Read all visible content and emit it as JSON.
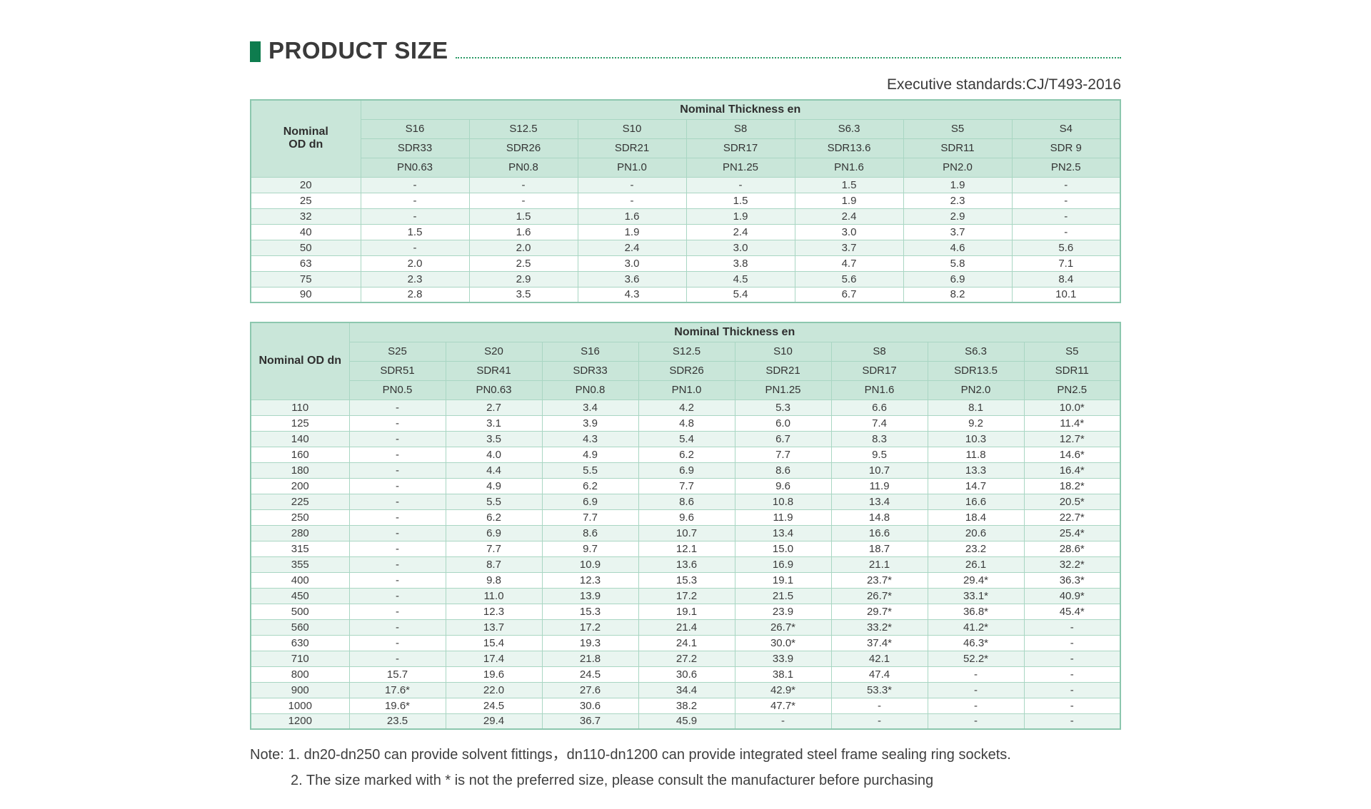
{
  "page": {
    "title": "PRODUCT SIZE",
    "standard": "Executive standards:CJ/T493-2016",
    "notes": [
      "Note: 1. dn20-dn250 can provide solvent fittings，dn110-dn1200 can provide integrated steel frame sealing ring sockets.",
      "2. The size marked with * is not the preferred size, please consult the manufacturer before purchasing"
    ],
    "colors": {
      "accent": "#0e7c4e",
      "dotted_leader": "#2c9a67",
      "table_header_bg": "#c9e6d9",
      "row_stripe_bg": "#e9f5f0",
      "table_border": "#a9d6c3",
      "table_outer_border": "#8cc7ae",
      "text": "#3c3c3c"
    }
  },
  "tables": [
    {
      "corner_lines": [
        "Nominal",
        "OD dn"
      ],
      "span_header": "Nominal Thickness en",
      "corner_width": 154,
      "s_row": [
        "S16",
        "S12.5",
        "S10",
        "S8",
        "S6.3",
        "S5",
        "S4"
      ],
      "sdr_row": [
        "SDR33",
        "SDR26",
        "SDR21",
        "SDR17",
        "SDR13.6",
        "SDR11",
        "SDR 9"
      ],
      "pn_row": [
        "PN0.63",
        "PN0.8",
        "PN1.0",
        "PN1.25",
        "PN1.6",
        "PN2.0",
        "PN2.5"
      ],
      "rows": [
        {
          "dn": "20",
          "values": [
            "-",
            "-",
            "-",
            "-",
            "1.5",
            "1.9",
            "-"
          ]
        },
        {
          "dn": "25",
          "values": [
            "-",
            "-",
            "-",
            "1.5",
            "1.9",
            "2.3",
            "-"
          ]
        },
        {
          "dn": "32",
          "values": [
            "-",
            "1.5",
            "1.6",
            "1.9",
            "2.4",
            "2.9",
            "-"
          ]
        },
        {
          "dn": "40",
          "values": [
            "1.5",
            "1.6",
            "1.9",
            "2.4",
            "3.0",
            "3.7",
            "-"
          ]
        },
        {
          "dn": "50",
          "values": [
            "-",
            "2.0",
            "2.4",
            "3.0",
            "3.7",
            "4.6",
            "5.6"
          ]
        },
        {
          "dn": "63",
          "values": [
            "2.0",
            "2.5",
            "3.0",
            "3.8",
            "4.7",
            "5.8",
            "7.1"
          ]
        },
        {
          "dn": "75",
          "values": [
            "2.3",
            "2.9",
            "3.6",
            "4.5",
            "5.6",
            "6.9",
            "8.4"
          ]
        },
        {
          "dn": "90",
          "values": [
            "2.8",
            "3.5",
            "4.3",
            "5.4",
            "6.7",
            "8.2",
            "10.1"
          ]
        }
      ]
    },
    {
      "corner_lines": [
        "Nominal OD dn"
      ],
      "span_header": "Nominal Thickness en",
      "corner_width": 138,
      "s_row": [
        "S25",
        "S20",
        "S16",
        "S12.5",
        "S10",
        "S8",
        "S6.3",
        "S5"
      ],
      "sdr_row": [
        "SDR51",
        "SDR41",
        "SDR33",
        "SDR26",
        "SDR21",
        "SDR17",
        "SDR13.5",
        "SDR11"
      ],
      "pn_row": [
        "PN0.5",
        "PN0.63",
        "PN0.8",
        "PN1.0",
        "PN1.25",
        "PN1.6",
        "PN2.0",
        "PN2.5"
      ],
      "rows": [
        {
          "dn": "110",
          "values": [
            "-",
            "2.7",
            "3.4",
            "4.2",
            "5.3",
            "6.6",
            "8.1",
            "10.0*"
          ]
        },
        {
          "dn": "125",
          "values": [
            "-",
            "3.1",
            "3.9",
            "4.8",
            "6.0",
            "7.4",
            "9.2",
            "11.4*"
          ]
        },
        {
          "dn": "140",
          "values": [
            "-",
            "3.5",
            "4.3",
            "5.4",
            "6.7",
            "8.3",
            "10.3",
            "12.7*"
          ]
        },
        {
          "dn": "160",
          "values": [
            "-",
            "4.0",
            "4.9",
            "6.2",
            "7.7",
            "9.5",
            "11.8",
            "14.6*"
          ]
        },
        {
          "dn": "180",
          "values": [
            "-",
            "4.4",
            "5.5",
            "6.9",
            "8.6",
            "10.7",
            "13.3",
            "16.4*"
          ]
        },
        {
          "dn": "200",
          "values": [
            "-",
            "4.9",
            "6.2",
            "7.7",
            "9.6",
            "11.9",
            "14.7",
            "18.2*"
          ]
        },
        {
          "dn": "225",
          "values": [
            "-",
            "5.5",
            "6.9",
            "8.6",
            "10.8",
            "13.4",
            "16.6",
            "20.5*"
          ]
        },
        {
          "dn": "250",
          "values": [
            "-",
            "6.2",
            "7.7",
            "9.6",
            "11.9",
            "14.8",
            "18.4",
            "22.7*"
          ]
        },
        {
          "dn": "280",
          "values": [
            "-",
            "6.9",
            "8.6",
            "10.7",
            "13.4",
            "16.6",
            "20.6",
            "25.4*"
          ]
        },
        {
          "dn": "315",
          "values": [
            "-",
            "7.7",
            "9.7",
            "12.1",
            "15.0",
            "18.7",
            "23.2",
            "28.6*"
          ]
        },
        {
          "dn": "355",
          "values": [
            "-",
            "8.7",
            "10.9",
            "13.6",
            "16.9",
            "21.1",
            "26.1",
            "32.2*"
          ]
        },
        {
          "dn": "400",
          "values": [
            "-",
            "9.8",
            "12.3",
            "15.3",
            "19.1",
            "23.7*",
            "29.4*",
            "36.3*"
          ]
        },
        {
          "dn": "450",
          "values": [
            "-",
            "11.0",
            "13.9",
            "17.2",
            "21.5",
            "26.7*",
            "33.1*",
            "40.9*"
          ]
        },
        {
          "dn": "500",
          "values": [
            "-",
            "12.3",
            "15.3",
            "19.1",
            "23.9",
            "29.7*",
            "36.8*",
            "45.4*"
          ]
        },
        {
          "dn": "560",
          "values": [
            "-",
            "13.7",
            "17.2",
            "21.4",
            "26.7*",
            "33.2*",
            "41.2*",
            "-"
          ]
        },
        {
          "dn": "630",
          "values": [
            "-",
            "15.4",
            "19.3",
            "24.1",
            "30.0*",
            "37.4*",
            "46.3*",
            "-"
          ]
        },
        {
          "dn": "710",
          "values": [
            "-",
            "17.4",
            "21.8",
            "27.2",
            "33.9",
            "42.1",
            "52.2*",
            "-"
          ]
        },
        {
          "dn": "800",
          "values": [
            "15.7",
            "19.6",
            "24.5",
            "30.6",
            "38.1",
            "47.4",
            "-",
            "-"
          ]
        },
        {
          "dn": "900",
          "values": [
            "17.6*",
            "22.0",
            "27.6",
            "34.4",
            "42.9*",
            "53.3*",
            "-",
            "-"
          ]
        },
        {
          "dn": "1000",
          "values": [
            "19.6*",
            "24.5",
            "30.6",
            "38.2",
            "47.7*",
            "-",
            "-",
            "-"
          ]
        },
        {
          "dn": "1200",
          "values": [
            "23.5",
            "29.4",
            "36.7",
            "45.9",
            "-",
            "-",
            "-",
            "-"
          ]
        }
      ]
    }
  ]
}
